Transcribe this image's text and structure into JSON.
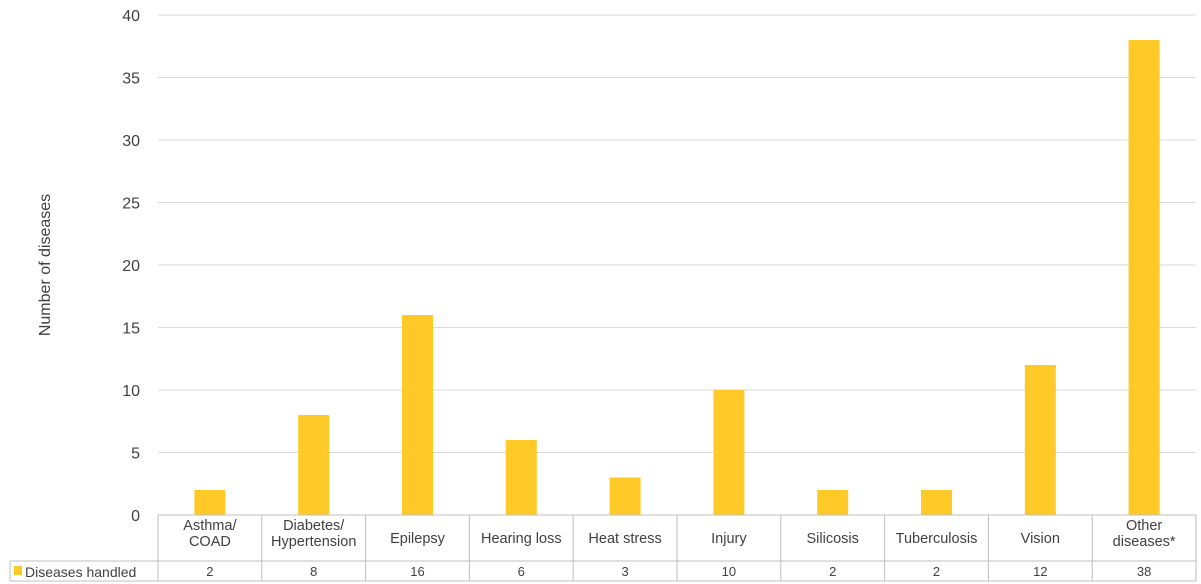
{
  "chart_data": {
    "type": "bar",
    "categories": [
      [
        "Asthma/",
        "COAD"
      ],
      [
        "Diabetes/",
        "Hypertension"
      ],
      [
        "Epilepsy"
      ],
      [
        "Hearing loss"
      ],
      [
        "Heat stress"
      ],
      [
        "Injury"
      ],
      [
        "Silicosis"
      ],
      [
        "Tuberculosis"
      ],
      [
        "Vision"
      ],
      [
        "Other",
        "diseases*"
      ]
    ],
    "series": [
      {
        "name": "Diseases handled",
        "values": [
          2,
          8,
          16,
          6,
          3,
          10,
          2,
          2,
          12,
          38
        ],
        "color": "#FFC928"
      }
    ],
    "ylabel": "Number of diseases",
    "ylim": [
      0,
      40
    ],
    "yticks": [
      0,
      5,
      10,
      15,
      20,
      25,
      30,
      35,
      40
    ],
    "grid": true,
    "legend": "data-table"
  }
}
